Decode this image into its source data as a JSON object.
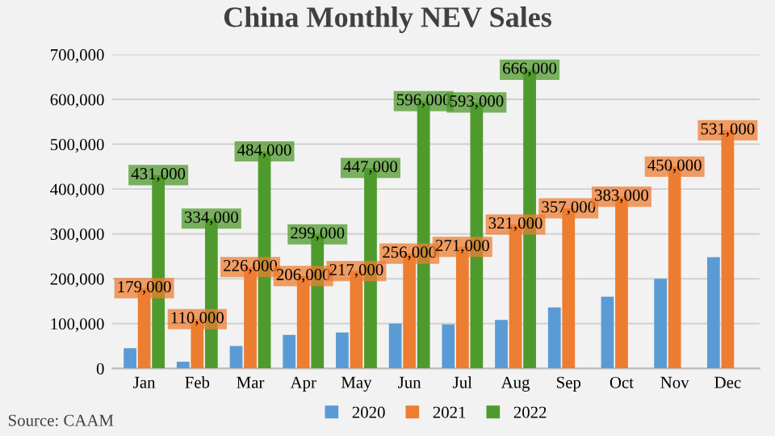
{
  "chart_data": {
    "type": "bar",
    "title": "China Monthly NEV Sales",
    "categories": [
      "Jan",
      "Feb",
      "Mar",
      "Apr",
      "May",
      "Jun",
      "Jul",
      "Aug",
      "Sep",
      "Oct",
      "Nov",
      "Dec"
    ],
    "series": [
      {
        "name": "2020",
        "color": "#5b9bd5",
        "values": [
          45000,
          15000,
          50000,
          75000,
          80000,
          100000,
          98000,
          108000,
          136000,
          160000,
          200000,
          248000
        ]
      },
      {
        "name": "2021",
        "color": "#ed7d31",
        "values": [
          179000,
          110000,
          226000,
          206000,
          217000,
          256000,
          271000,
          321000,
          357000,
          383000,
          450000,
          531000
        ],
        "value_labels": [
          "179,000",
          "110,000",
          "226,000",
          "206,000",
          "217,000",
          "256,000",
          "271,000",
          "321,000",
          "357,000",
          "383,000",
          "450,000",
          "531,000"
        ]
      },
      {
        "name": "2022",
        "color": "#4f9a2c",
        "values": [
          431000,
          334000,
          484000,
          299000,
          447000,
          596000,
          593000,
          666000,
          null,
          null,
          null,
          null
        ],
        "value_labels": [
          "431,000",
          "334,000",
          "484,000",
          "299,000",
          "447,000",
          "596,000",
          "593,000",
          "666,000",
          null,
          null,
          null,
          null
        ]
      }
    ],
    "ylim": [
      0,
      700000
    ],
    "yticks": [
      0,
      {
        "value": 100000,
        "label": "100,000"
      },
      {
        "value": 200000,
        "label": "200,000"
      },
      {
        "value": 300000,
        "label": "300,000"
      },
      {
        "value": 400000,
        "label": "400,000"
      },
      {
        "value": 500000,
        "label": "500,000"
      },
      {
        "value": 600000,
        "label": "600,000"
      },
      {
        "value": 700000,
        "label": "700,000"
      }
    ],
    "grid": "y",
    "legend": "bottom",
    "annotations": [
      "Source: CAAM"
    ]
  }
}
